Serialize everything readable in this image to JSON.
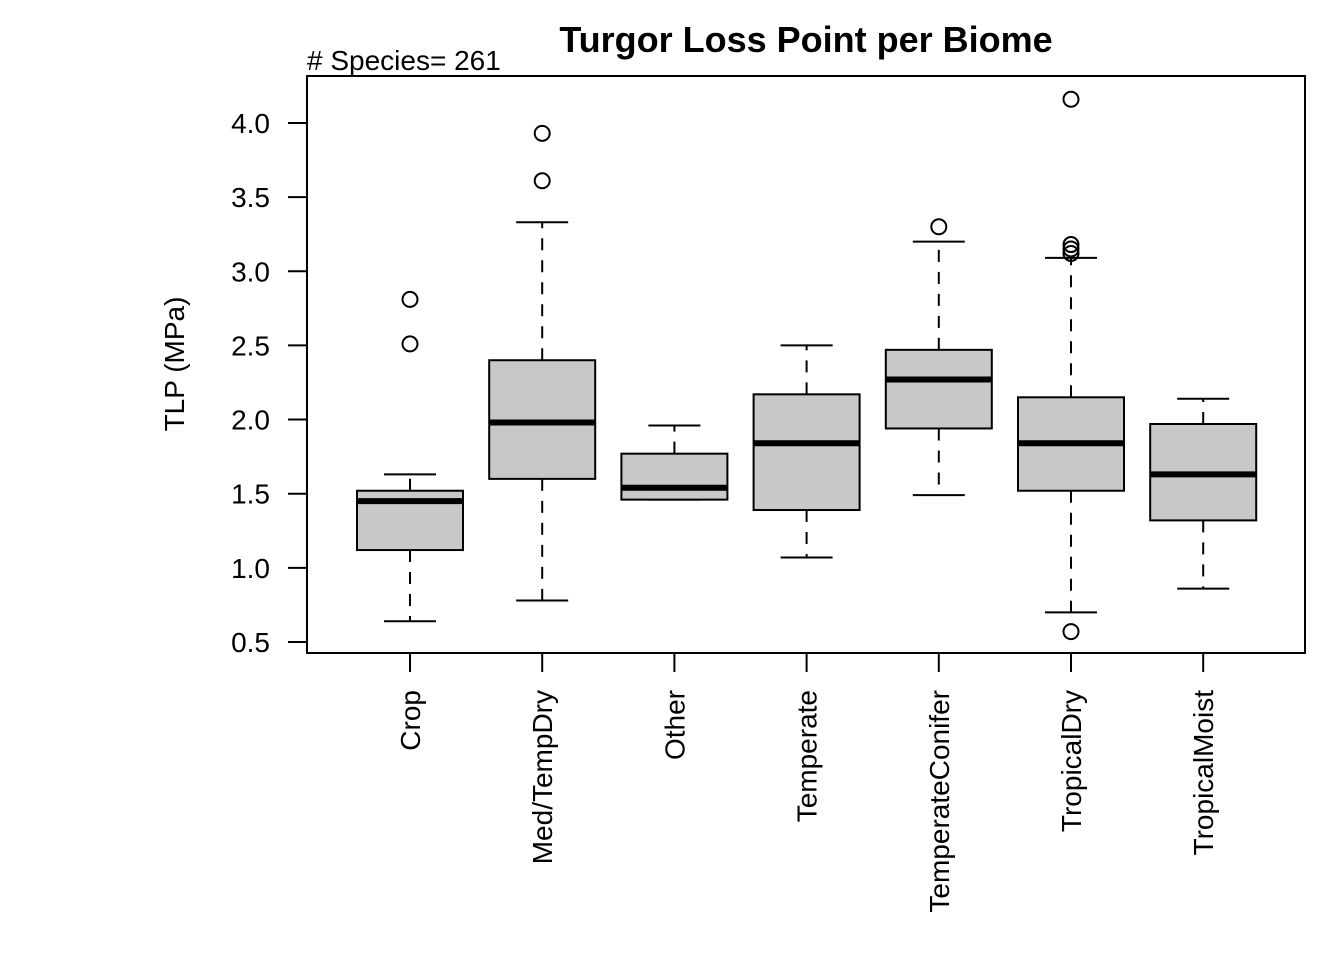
{
  "chart_data": {
    "type": "boxplot",
    "title": "Turgor Loss Point per Biome",
    "subtitle": "# Species= 261",
    "xlabel": "",
    "ylabel": "TLP (MPa)",
    "ylim": [
      0.45,
      4.3
    ],
    "yticks": [
      0.5,
      1.0,
      1.5,
      2.0,
      2.5,
      3.0,
      3.5,
      4.0
    ],
    "ytick_labels": [
      "0.5",
      "1.0",
      "1.5",
      "2.0",
      "2.5",
      "3.0",
      "3.5",
      "4.0"
    ],
    "grid": false,
    "legend": "none",
    "colors": {
      "box_fill": "#c8c8c8",
      "stroke": "#000000",
      "background": "#ffffff"
    },
    "categories": [
      "Crop",
      "Med/TempDry",
      "Other",
      "Temperate",
      "TemperateConifer",
      "TropicalDry",
      "TropicalMoist"
    ],
    "boxes": [
      {
        "whisker_low": 0.64,
        "q1": 1.12,
        "median": 1.45,
        "q3": 1.52,
        "whisker_high": 1.63,
        "outliers": [
          2.51,
          2.81
        ]
      },
      {
        "whisker_low": 0.78,
        "q1": 1.6,
        "median": 1.98,
        "q3": 2.4,
        "whisker_high": 3.33,
        "outliers": [
          3.61,
          3.93
        ]
      },
      {
        "whisker_low": 1.46,
        "q1": 1.46,
        "median": 1.54,
        "q3": 1.77,
        "whisker_high": 1.96,
        "outliers": []
      },
      {
        "whisker_low": 1.07,
        "q1": 1.39,
        "median": 1.84,
        "q3": 2.17,
        "whisker_high": 2.5,
        "outliers": []
      },
      {
        "whisker_low": 1.49,
        "q1": 1.94,
        "median": 2.27,
        "q3": 2.47,
        "whisker_high": 3.2,
        "outliers": [
          3.3
        ]
      },
      {
        "whisker_low": 0.7,
        "q1": 1.52,
        "median": 1.84,
        "q3": 2.15,
        "whisker_high": 3.09,
        "outliers": [
          0.57,
          3.12,
          3.15,
          3.18,
          4.16
        ]
      },
      {
        "whisker_low": 0.86,
        "q1": 1.32,
        "median": 1.63,
        "q3": 1.97,
        "whisker_high": 2.14,
        "outliers": []
      }
    ]
  }
}
